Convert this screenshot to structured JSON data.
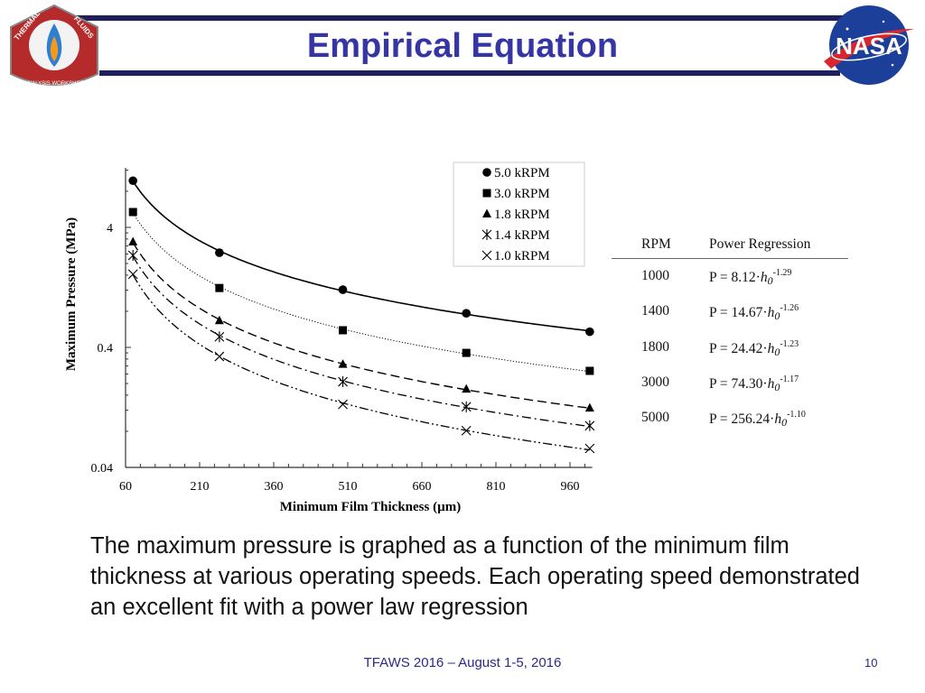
{
  "header": {
    "title": "Empirical Equation",
    "left_logo": "TFAWS Thermal & Fluids Analysis Workshop logo",
    "left_logo_text": [
      "THERMAL",
      "&",
      "FLUIDS",
      "ANALYSIS WORKSHOP"
    ],
    "right_logo": "NASA meatball logo",
    "right_logo_text": "NASA",
    "band_color": "#1f1f5c",
    "title_color": "#3535a5"
  },
  "chart_data": {
    "type": "scatter",
    "xlabel": "Minimum Film Thickness (µm)",
    "ylabel": "Maximum Pressure (MPa)",
    "xlim": [
      60,
      1005
    ],
    "ylim": [
      0.04,
      12.5
    ],
    "yscale": "log",
    "x_ticks": [
      "60",
      "210",
      "360",
      "510",
      "660",
      "810",
      "960"
    ],
    "y_ticks": [
      "0.04",
      "0.4",
      "4"
    ],
    "grid": false,
    "legend_position": "top-right",
    "x": [
      75,
      250,
      500,
      750,
      1000
    ],
    "series": [
      {
        "name": "5.0 kRPM",
        "marker": "circle",
        "line": "solid",
        "values": [
          9.8,
          2.46,
          1.21,
          0.77,
          0.54
        ]
      },
      {
        "name": "3.0 kRPM",
        "marker": "square",
        "line": "dotted",
        "values": [
          5.37,
          1.25,
          0.556,
          0.36,
          0.255
        ]
      },
      {
        "name": "1.8 kRPM",
        "marker": "triangle",
        "line": "dashed",
        "values": [
          3.03,
          0.67,
          0.29,
          0.18,
          0.125
        ]
      },
      {
        "name": "1.4 kRPM",
        "marker": "asterisk",
        "line": "dash-dot",
        "values": [
          2.34,
          0.49,
          0.207,
          0.128,
          0.089
        ]
      },
      {
        "name": "1.0 kRPM",
        "marker": "x",
        "line": "dash-dot-dot",
        "values": [
          1.63,
          0.336,
          0.134,
          0.081,
          0.0575
        ]
      }
    ]
  },
  "table": {
    "headers": [
      "RPM",
      "Power Regression"
    ],
    "h_symbol": "h",
    "h_sub": "0",
    "rows": [
      {
        "rpm": "1000",
        "lhs": "P = 8.12·",
        "exp": "-1.29"
      },
      {
        "rpm": "1400",
        "lhs": "P = 14.67·",
        "exp": "-1.26"
      },
      {
        "rpm": "1800",
        "lhs": "P = 24.42·",
        "exp": "-1.23"
      },
      {
        "rpm": "3000",
        "lhs": "P = 74.30·",
        "exp": "-1.17"
      },
      {
        "rpm": "5000",
        "lhs": "P = 256.24·",
        "exp": "-1.10"
      }
    ]
  },
  "body_text": "The maximum pressure is graphed as a function of the minimum film thickness at various operating speeds. Each operating speed demonstrated an excellent fit with a power law regression",
  "footer": {
    "text": "TFAWS 2016 – August 1-5, 2016",
    "page": "10"
  }
}
